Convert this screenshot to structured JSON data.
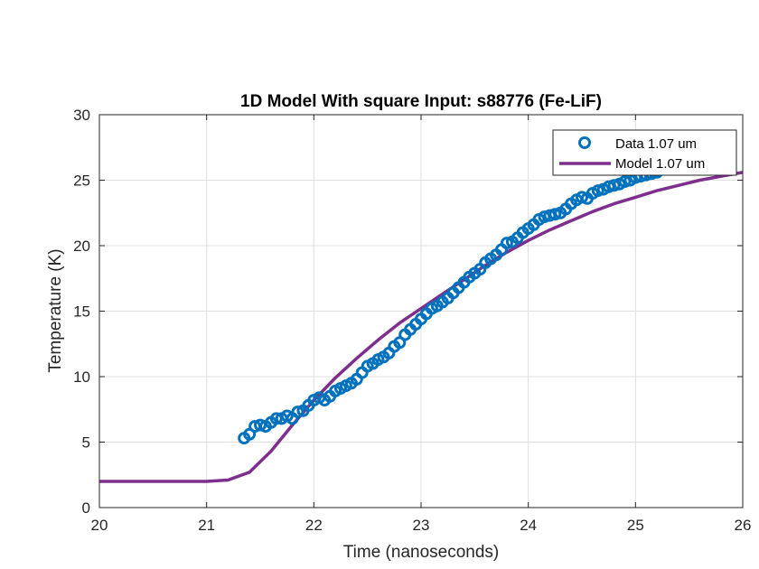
{
  "chart_data": {
    "type": "line",
    "title": "1D Model With square Input: s88776 (Fe-LiF)",
    "xlabel": "Time (nanoseconds)",
    "ylabel": "Temperature (K)",
    "xlim": [
      20,
      26
    ],
    "ylim": [
      0,
      30
    ],
    "xticks": [
      "20",
      "21",
      "22",
      "23",
      "24",
      "25",
      "26"
    ],
    "yticks": [
      "0",
      "5",
      "10",
      "15",
      "20",
      "25",
      "30"
    ],
    "grid": true,
    "legend_position": "top-right",
    "series": [
      {
        "name": "Data 1.07 um",
        "kind": "scatter",
        "color": "#0072bd",
        "x": [
          21.35,
          21.4,
          21.45,
          21.5,
          21.55,
          21.6,
          21.65,
          21.7,
          21.75,
          21.8,
          21.85,
          21.9,
          21.95,
          22.0,
          22.05,
          22.1,
          22.15,
          22.2,
          22.25,
          22.3,
          22.35,
          22.4,
          22.45,
          22.5,
          22.55,
          22.6,
          22.65,
          22.7,
          22.75,
          22.8,
          22.85,
          22.9,
          22.95,
          23.0,
          23.05,
          23.1,
          23.15,
          23.2,
          23.25,
          23.3,
          23.35,
          23.4,
          23.45,
          23.5,
          23.55,
          23.6,
          23.65,
          23.7,
          23.75,
          23.8,
          23.85,
          23.9,
          23.95,
          24.0,
          24.05,
          24.1,
          24.15,
          24.2,
          24.25,
          24.3,
          24.35,
          24.4,
          24.45,
          24.5,
          24.55,
          24.6,
          24.65,
          24.7,
          24.75,
          24.8,
          24.85,
          24.9,
          24.95,
          25.0,
          25.05,
          25.1,
          25.15,
          25.2
        ],
        "y": [
          5.3,
          5.6,
          6.2,
          6.3,
          6.2,
          6.5,
          6.8,
          6.8,
          7.0,
          6.8,
          7.3,
          7.4,
          7.8,
          8.2,
          8.4,
          8.2,
          8.5,
          8.9,
          9.1,
          9.3,
          9.5,
          9.8,
          10.3,
          10.8,
          11.0,
          11.3,
          11.5,
          11.8,
          12.3,
          12.6,
          13.2,
          13.6,
          14.0,
          14.4,
          14.8,
          15.2,
          15.4,
          15.7,
          16.0,
          16.4,
          16.8,
          17.2,
          17.6,
          17.9,
          18.2,
          18.7,
          19.0,
          19.3,
          19.7,
          20.2,
          20.3,
          20.6,
          21.0,
          21.3,
          21.6,
          22.0,
          22.2,
          22.3,
          22.4,
          22.5,
          22.8,
          23.2,
          23.5,
          23.7,
          23.6,
          24.0,
          24.2,
          24.3,
          24.5,
          24.6,
          24.7,
          24.9,
          25.0,
          25.2,
          25.3,
          25.4,
          25.5,
          25.6
        ]
      },
      {
        "name": "Model 1.07 um",
        "kind": "line",
        "color": "#7e2f8e",
        "x": [
          20.0,
          21.0,
          21.2,
          21.4,
          21.6,
          21.8,
          22.0,
          22.2,
          22.4,
          22.6,
          22.8,
          23.0,
          23.2,
          23.4,
          23.6,
          23.8,
          24.0,
          24.2,
          24.4,
          24.6,
          24.8,
          25.0,
          25.2,
          25.4,
          25.6,
          25.8,
          26.0
        ],
        "y": [
          2.0,
          2.0,
          2.1,
          2.7,
          4.3,
          6.3,
          8.2,
          9.9,
          11.4,
          12.8,
          14.1,
          15.2,
          16.3,
          17.4,
          18.5,
          19.5,
          20.4,
          21.2,
          21.9,
          22.6,
          23.2,
          23.7,
          24.2,
          24.6,
          25.0,
          25.3,
          25.6
        ]
      }
    ]
  }
}
